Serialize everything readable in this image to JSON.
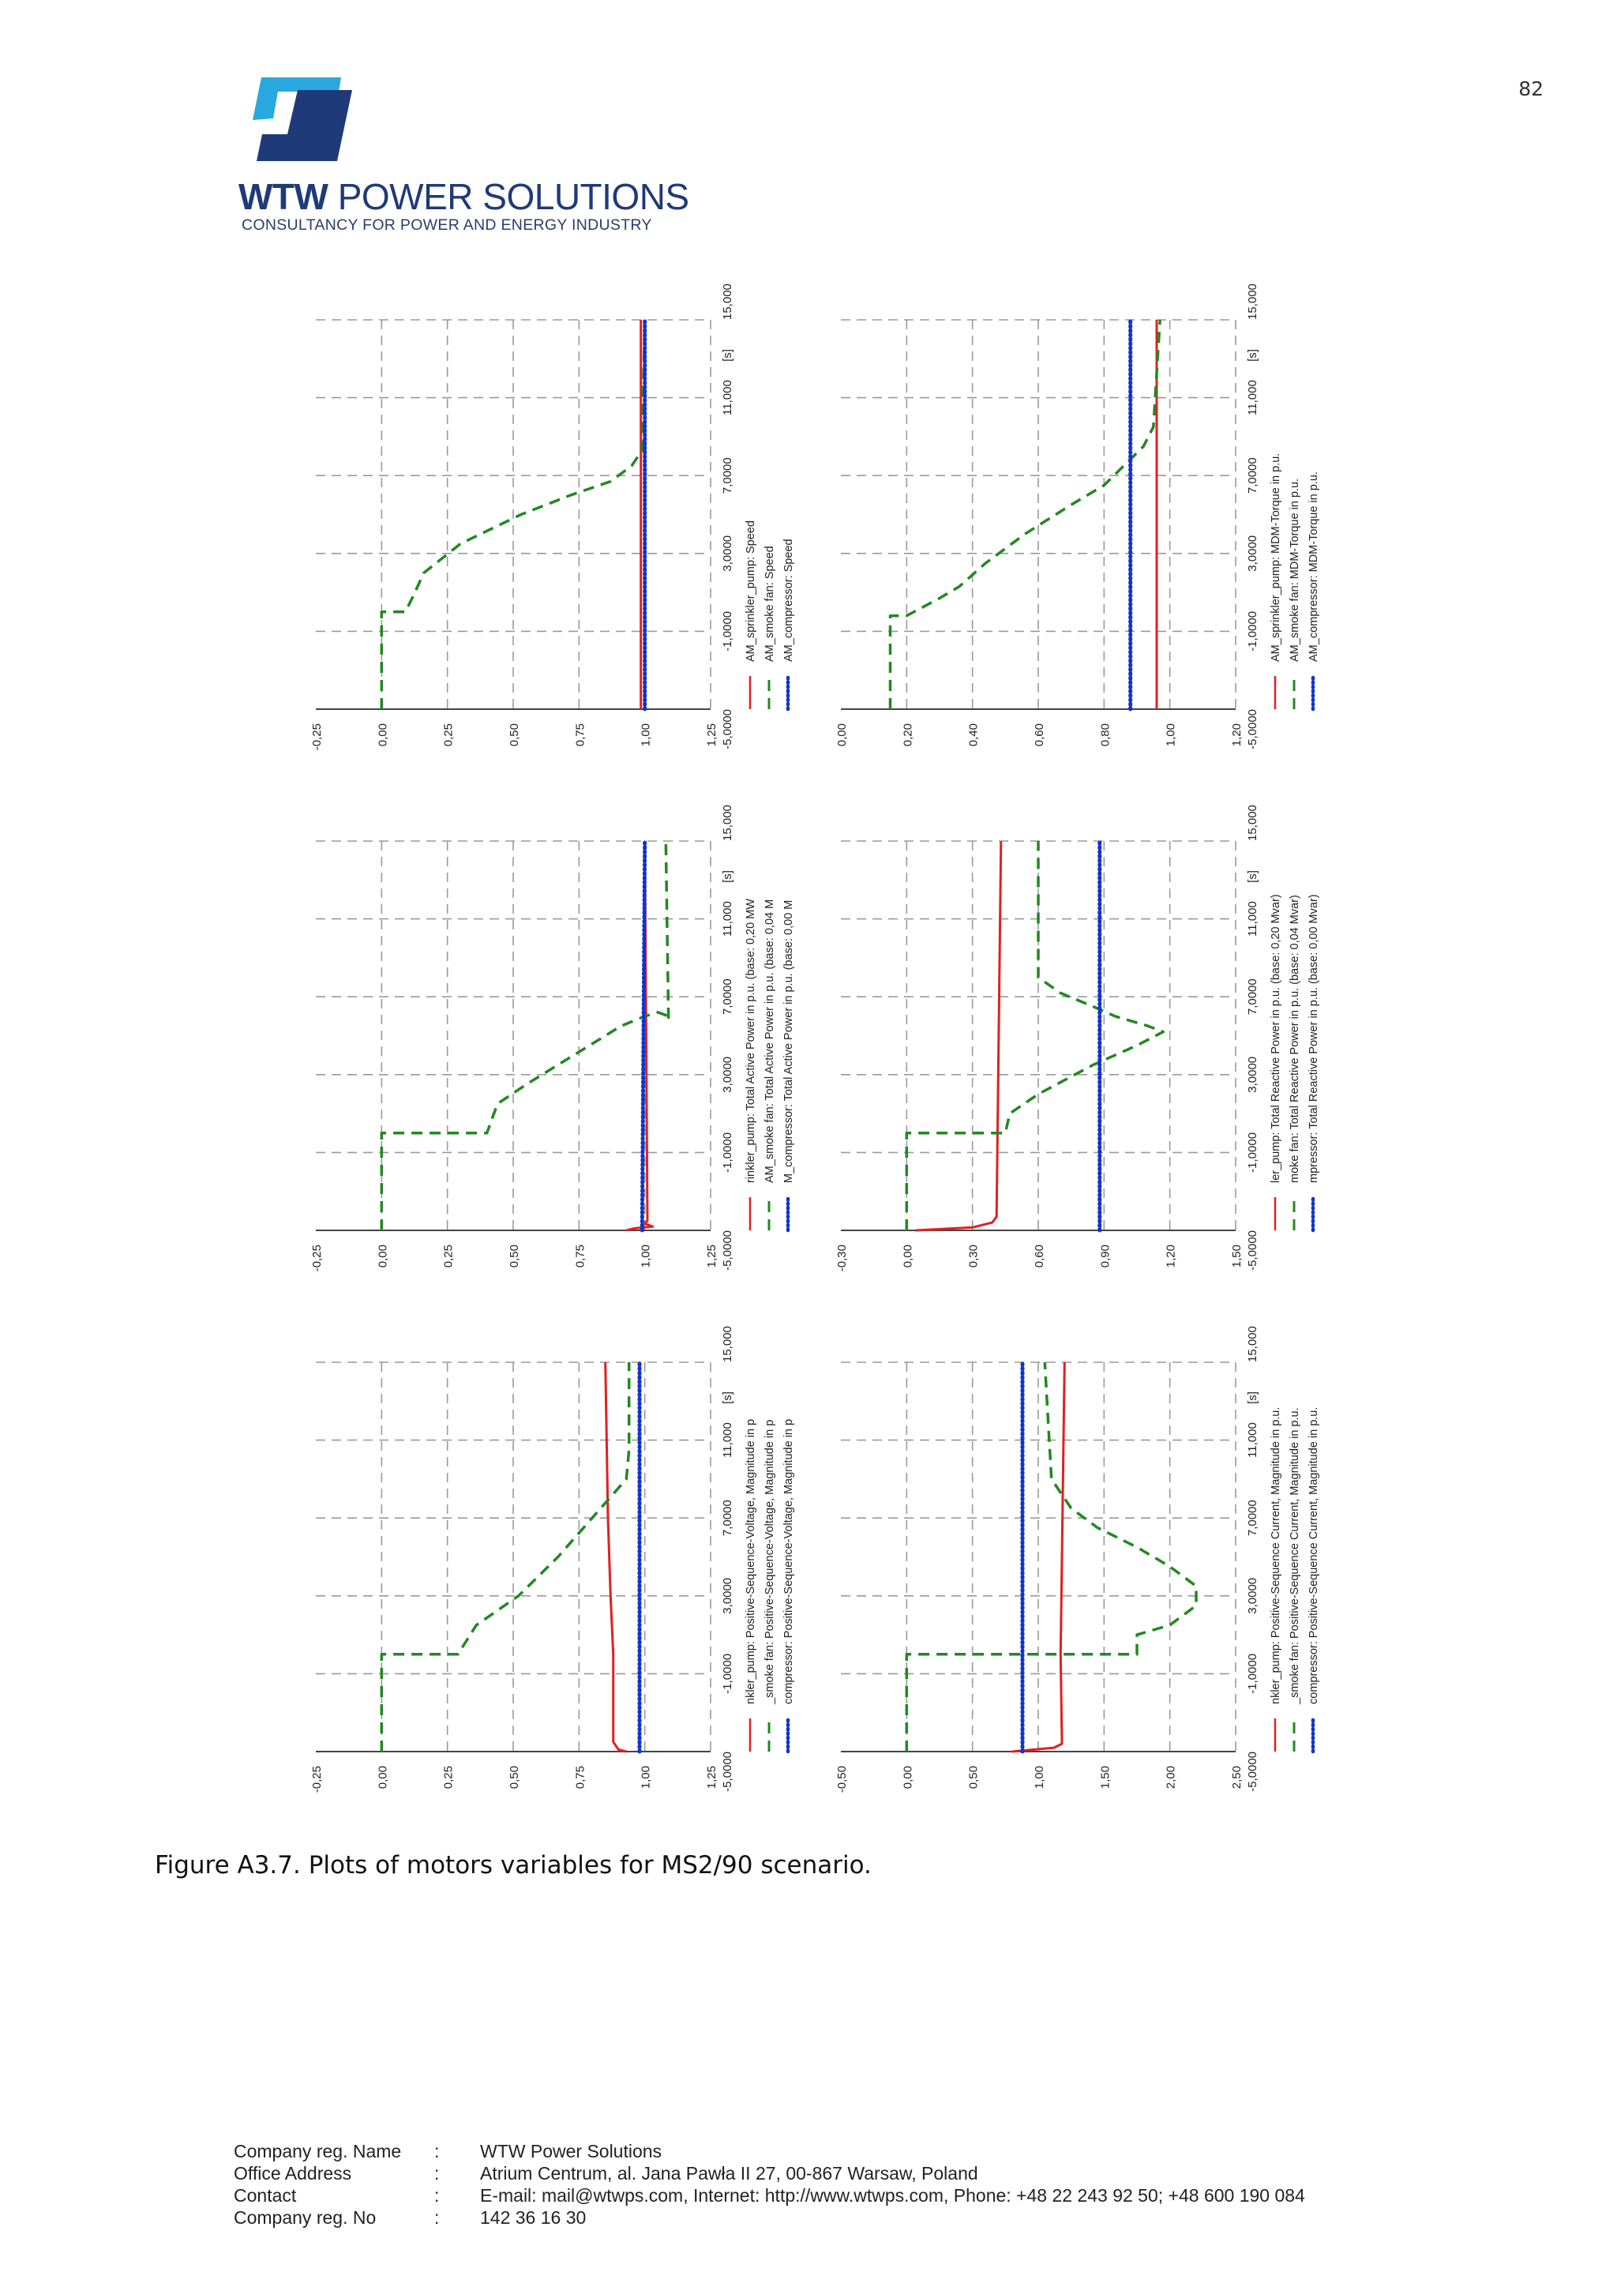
{
  "page_number": "82",
  "logo": {
    "brand_bold": "WTW",
    "brand_rest": " POWER SOLUTIONS",
    "tagline": "CONSULTANCY FOR POWER AND ENERGY INDUSTRY"
  },
  "caption": "Figure A3.7. Plots of motors variables for MS2/90 scenario.",
  "footer": {
    "rows": [
      {
        "label": "Company reg. Name",
        "sep": ":",
        "value": "WTW Power Solutions"
      },
      {
        "label": "Office Address",
        "sep": ":",
        "value": "Atrium Centrum, al. Jana Pawła II 27, 00-867 Warsaw, Poland"
      },
      {
        "label": "Contact",
        "sep": ":",
        "value": "E-mail: mail@wtwps.com, Internet: http://www.wtwps.com, Phone: +48 22 243 92 50; +48 600 190 084"
      },
      {
        "label": "Company reg. No",
        "sep": ":",
        "value": "142 36 16 30"
      }
    ]
  },
  "colors": {
    "series_1": "#e02020",
    "series_2": "#228822",
    "series_3": "#1133cc",
    "grid": "#9a9a9a"
  },
  "chart_data": [
    {
      "type": "line",
      "id": "speed",
      "x_ticks": [
        "-5,0000",
        "-1,0000",
        "3,0000",
        "7,0000",
        "11,000",
        "15,000"
      ],
      "x_unit": "[s]",
      "xlim": [
        -5,
        15
      ],
      "y_ticks": [
        "-0,25",
        "0,00",
        "0,25",
        "0,50",
        "0,75",
        "1,00",
        "1,25"
      ],
      "ylim": [
        -0.25,
        1.25
      ],
      "legend": [
        "AM_sprinkler_pump: Speed",
        "AM_smoke fan: Speed",
        "AM_compressor: Speed"
      ],
      "series": [
        {
          "name": "AM_sprinkler_pump: Speed",
          "points": [
            [
              -5,
              0.985
            ],
            [
              15,
              0.985
            ]
          ]
        },
        {
          "name": "AM_smoke fan: Speed",
          "points": [
            [
              -5,
              0
            ],
            [
              0,
              0
            ],
            [
              0,
              0.09
            ],
            [
              0.8,
              0.12
            ],
            [
              2,
              0.16
            ],
            [
              3.5,
              0.3
            ],
            [
              5,
              0.53
            ],
            [
              6,
              0.72
            ],
            [
              6.7,
              0.87
            ],
            [
              7.5,
              0.95
            ],
            [
              8.3,
              0.99
            ],
            [
              15,
              1.0
            ]
          ]
        },
        {
          "name": "AM_compressor: Speed",
          "points": [
            [
              -5,
              1.0
            ],
            [
              15,
              1.0
            ]
          ]
        }
      ]
    },
    {
      "type": "line",
      "id": "torque",
      "x_ticks": [
        "-5,0000",
        "-1,0000",
        "3,0000",
        "7,0000",
        "11,000",
        "15,000"
      ],
      "x_unit": "[s]",
      "xlim": [
        -5,
        15
      ],
      "y_ticks": [
        "0,00",
        "0,20",
        "0,40",
        "0,60",
        "0,80",
        "1,00",
        "1,20"
      ],
      "ylim": [
        0,
        1.2
      ],
      "legend": [
        "AM_sprinkler_pump: MDM-Torque in p.u.",
        "AM_smoke fan: MDM-Torque in p.u.",
        "AM_compressor: MDM-Torque in p.u."
      ],
      "series": [
        {
          "name": "AM_sprinkler_pump: MDM-Torque in p.u.",
          "points": [
            [
              -5,
              0.96
            ],
            [
              15,
              0.96
            ]
          ]
        },
        {
          "name": "AM_smoke fan: MDM-Torque in p.u.",
          "points": [
            [
              -5,
              0.15
            ],
            [
              -0.2,
              0.15
            ],
            [
              -0.2,
              0.2
            ],
            [
              0.7,
              0.3
            ],
            [
              1.3,
              0.36
            ],
            [
              2.5,
              0.44
            ],
            [
              4,
              0.56
            ],
            [
              5.5,
              0.7
            ],
            [
              6.5,
              0.8
            ],
            [
              7.5,
              0.86
            ],
            [
              8.5,
              0.92
            ],
            [
              9.5,
              0.95
            ],
            [
              15,
              0.97
            ]
          ]
        },
        {
          "name": "AM_compressor: MDM-Torque in p.u.",
          "points": [
            [
              -5,
              0.88
            ],
            [
              15,
              0.88
            ]
          ]
        }
      ]
    },
    {
      "type": "line",
      "id": "active-power",
      "x_ticks": [
        "-5,0000",
        "-1,0000",
        "3,0000",
        "7,0000",
        "11,000",
        "15,000"
      ],
      "x_unit": "[s]",
      "xlim": [
        -5,
        15
      ],
      "y_ticks": [
        "-0,25",
        "0,00",
        "0,25",
        "0,50",
        "0,75",
        "1,00",
        "1,25"
      ],
      "ylim": [
        -0.25,
        1.25
      ],
      "legend": [
        "rinkler_pump: Total Active Power in p.u. (base: 0,20 MW",
        "AM_smoke fan: Total Active Power in p.u. (base: 0,04 M",
        "M_compressor: Total Active Power in p.u. (base: 0,00 M"
      ],
      "series": [
        {
          "name": "sprinkler_pump: Total Active Power",
          "points": [
            [
              -5,
              0.93
            ],
            [
              -4.9,
              0.96
            ],
            [
              -4.8,
              1.03
            ],
            [
              -4.65,
              1.0
            ],
            [
              -4.5,
              1.01
            ],
            [
              15,
              1.0
            ]
          ]
        },
        {
          "name": "smoke fan: Total Active Power",
          "points": [
            [
              -5,
              0
            ],
            [
              0,
              0
            ],
            [
              0,
              0.4
            ],
            [
              1.5,
              0.44
            ],
            [
              2.5,
              0.55
            ],
            [
              4,
              0.73
            ],
            [
              5.5,
              0.91
            ],
            [
              6,
              1.0
            ],
            [
              6.2,
              1.05
            ],
            [
              6,
              1.09
            ],
            [
              5.8,
              1.09
            ],
            [
              15,
              1.08
            ]
          ]
        },
        {
          "name": "compressor: Total Active Power",
          "points": [
            [
              -5,
              0.99
            ],
            [
              15,
              1.0
            ]
          ]
        }
      ]
    },
    {
      "type": "line",
      "id": "reactive-power",
      "x_ticks": [
        "-5,0000",
        "-1,0000",
        "3,0000",
        "7,0000",
        "11,000",
        "15,000"
      ],
      "x_unit": "[s]",
      "xlim": [
        -5,
        15
      ],
      "y_ticks": [
        "-0,30",
        "0,00",
        "0,30",
        "0,60",
        "0,90",
        "1,20",
        "1,50"
      ],
      "ylim": [
        -0.3,
        1.5
      ],
      "legend": [
        "ler_pump: Total Reactive Power in p.u. (base: 0,20 Mvar)",
        "moke fan: Total Reactive Power in p.u. (base: 0,04 Mvar)",
        "mpressor: Total Reactive Power in p.u. (base: 0,00 Mvar)"
      ],
      "series": [
        {
          "name": "sprinkler_pump: Total Reactive Power",
          "points": [
            [
              -5,
              0.04
            ],
            [
              -4.85,
              0.3
            ],
            [
              -4.6,
              0.39
            ],
            [
              -4.3,
              0.41
            ],
            [
              15,
              0.43
            ]
          ]
        },
        {
          "name": "smoke fan: Total Reactive Power",
          "points": [
            [
              -5,
              0
            ],
            [
              0,
              0
            ],
            [
              0,
              0.45
            ],
            [
              1,
              0.47
            ],
            [
              2,
              0.6
            ],
            [
              3.5,
              0.85
            ],
            [
              4.5,
              1.05
            ],
            [
              5.2,
              1.17
            ],
            [
              5.5,
              1.1
            ],
            [
              6,
              0.95
            ],
            [
              6.5,
              0.85
            ],
            [
              7.2,
              0.7
            ],
            [
              8,
              0.6
            ],
            [
              15,
              0.6
            ]
          ]
        },
        {
          "name": "compressor: Total Reactive Power",
          "points": [
            [
              -5,
              0.88
            ],
            [
              15,
              0.88
            ]
          ]
        }
      ]
    },
    {
      "type": "line",
      "id": "voltage",
      "x_ticks": [
        "-5,0000",
        "-1,0000",
        "3,0000",
        "7,0000",
        "11,000",
        "15,000"
      ],
      "x_unit": "[s]",
      "xlim": [
        -5,
        15
      ],
      "y_ticks": [
        "-0,25",
        "0,00",
        "0,25",
        "0,50",
        "0,75",
        "1,00",
        "1,25"
      ],
      "ylim": [
        -0.25,
        1.25
      ],
      "legend": [
        "nkler_pump: Positive-Sequence-Voltage, Magnitude in p",
        "_smoke fan: Positive-Sequence-Voltage, Magnitude in p",
        "compressor: Positive-Sequence-Voltage, Magnitude in p"
      ],
      "series": [
        {
          "name": "sprinkler_pump: Positive-Sequence-Voltage",
          "points": [
            [
              -5,
              0.93
            ],
            [
              -4.9,
              0.9
            ],
            [
              -4.5,
              0.88
            ],
            [
              0,
              0.88
            ],
            [
              3,
              0.87
            ],
            [
              7,
              0.86
            ],
            [
              15,
              0.85
            ]
          ]
        },
        {
          "name": "smoke fan: Positive-Sequence-Voltage",
          "points": [
            [
              -5,
              0
            ],
            [
              0,
              0
            ],
            [
              0,
              0.29
            ],
            [
              1.5,
              0.36
            ],
            [
              3,
              0.52
            ],
            [
              5,
              0.67
            ],
            [
              7,
              0.8
            ],
            [
              9,
              0.93
            ],
            [
              10.5,
              0.94
            ],
            [
              15,
              0.94
            ]
          ]
        },
        {
          "name": "compressor: Positive-Sequence-Voltage",
          "points": [
            [
              -5,
              0.98
            ],
            [
              15,
              0.98
            ]
          ]
        }
      ]
    },
    {
      "type": "line",
      "id": "current",
      "x_ticks": [
        "-5,0000",
        "-1,0000",
        "3,0000",
        "7,0000",
        "11,000",
        "15,000"
      ],
      "x_unit": "[s]",
      "xlim": [
        -5,
        15
      ],
      "y_ticks": [
        "-0,50",
        "0,00",
        "0,50",
        "1,00",
        "1,50",
        "2,00",
        "2,50"
      ],
      "ylim": [
        -0.5,
        2.5
      ],
      "legend": [
        "nkler_pump: Positive-Sequence Current, Magnitude in p.u.",
        "_smoke fan: Positive-Sequence Current, Magnitude in p.u.",
        "compressor: Positive-Sequence Current, Magnitude in p.u."
      ],
      "series": [
        {
          "name": "sprinkler_pump: Positive-Sequence Current",
          "points": [
            [
              -5,
              0.8
            ],
            [
              -4.8,
              1.12
            ],
            [
              -4.6,
              1.18
            ],
            [
              0,
              1.17
            ],
            [
              5,
              1.18
            ],
            [
              15,
              1.2
            ]
          ]
        },
        {
          "name": "smoke fan: Positive-Sequence Current",
          "points": [
            [
              -5,
              0
            ],
            [
              0,
              0
            ],
            [
              0,
              1.75
            ],
            [
              1,
              1.75
            ],
            [
              1.5,
              2.0
            ],
            [
              2.5,
              2.2
            ],
            [
              3.5,
              2.2
            ],
            [
              4.5,
              2.0
            ],
            [
              5.5,
              1.75
            ],
            [
              6.5,
              1.45
            ],
            [
              7.5,
              1.25
            ],
            [
              9,
              1.1
            ],
            [
              15,
              1.05
            ]
          ]
        },
        {
          "name": "compressor: Positive-Sequence Current",
          "points": [
            [
              -5,
              0.88
            ],
            [
              15,
              0.88
            ]
          ]
        }
      ]
    }
  ]
}
